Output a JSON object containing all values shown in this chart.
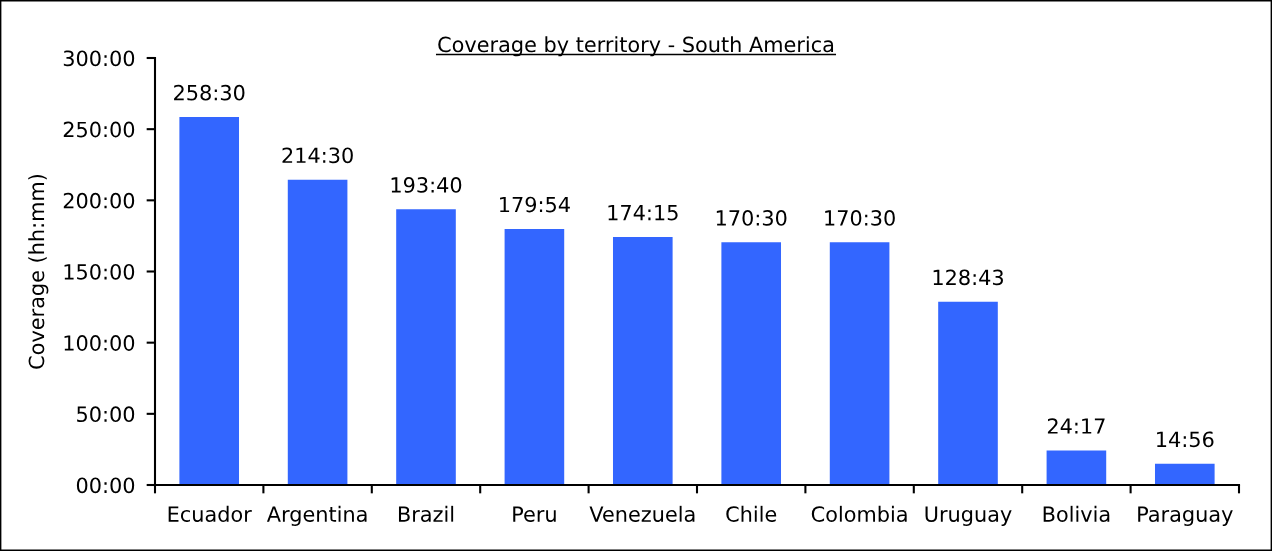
{
  "chart_data": {
    "type": "bar",
    "title": "Coverage by territory - South America",
    "ylabel": "Coverage (hh:mm)",
    "categories": [
      "Ecuador",
      "Argentina",
      "Brazil",
      "Peru",
      "Venezuela",
      "Chile",
      "Colombia",
      "Uruguay",
      "Bolivia",
      "Paraguay"
    ],
    "values": [
      258.5,
      214.5,
      193.67,
      179.9,
      174.25,
      170.5,
      170.5,
      128.72,
      24.28,
      14.93
    ],
    "value_labels": [
      "258:30",
      "214:30",
      "193:40",
      "179:54",
      "174:15",
      "170:30",
      "170:30",
      "128:43",
      "24:17",
      "14:56"
    ],
    "color": "#3366ff",
    "ylim": [
      0,
      300
    ],
    "yticks": [
      {
        "value": 0,
        "label": "00:00"
      },
      {
        "value": 50,
        "label": "50:00"
      },
      {
        "value": 100,
        "label": "100:00"
      },
      {
        "value": 150,
        "label": "150:00"
      },
      {
        "value": 200,
        "label": "200:00"
      },
      {
        "value": 250,
        "label": "250:00"
      },
      {
        "value": 300,
        "label": "300:00"
      }
    ]
  }
}
